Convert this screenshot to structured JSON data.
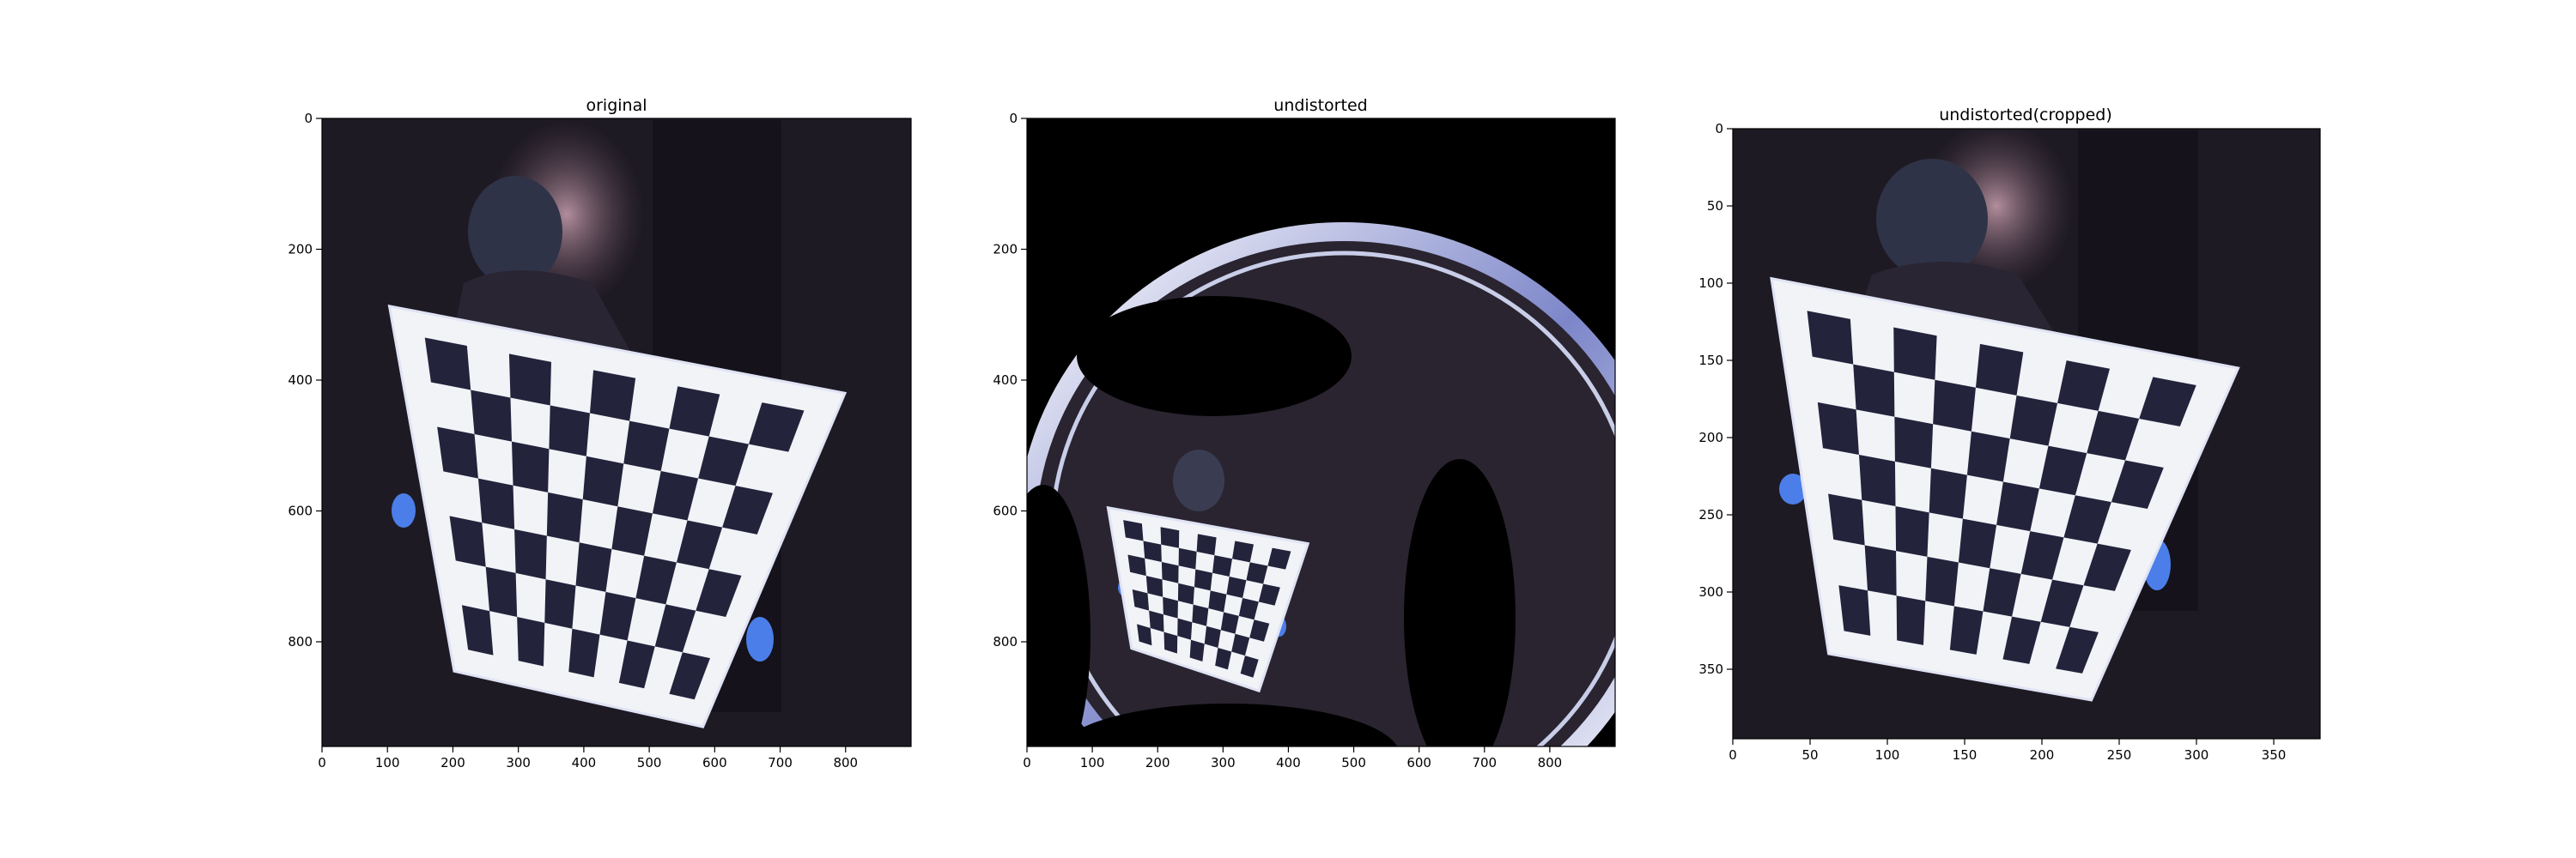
{
  "chart_data": [
    {
      "type": "image",
      "title": "original",
      "xlim": [
        0,
        900
      ],
      "ylim": [
        960,
        0
      ],
      "xticks": [
        0,
        100,
        200,
        300,
        400,
        500,
        600,
        700,
        800
      ],
      "yticks": [
        0,
        200,
        400,
        600,
        800
      ],
      "board_corners": [
        [
          103,
          287
        ],
        [
          799,
          420
        ],
        [
          582,
          930
        ],
        [
          202,
          845
        ]
      ],
      "grid": false
    },
    {
      "type": "image",
      "title": "undistorted",
      "xlim": [
        0,
        900
      ],
      "ylim": [
        960,
        0
      ],
      "xticks": [
        0,
        100,
        200,
        300,
        400,
        500,
        600,
        700,
        800
      ],
      "yticks": [
        0,
        200,
        400,
        600,
        800
      ],
      "board_corners": [
        [
          124,
          595
        ],
        [
          430,
          650
        ],
        [
          355,
          875
        ],
        [
          160,
          810
        ]
      ],
      "grid": false
    },
    {
      "type": "image",
      "title": "undistorted(cropped)",
      "xlim": [
        0,
        380
      ],
      "ylim": [
        395,
        0
      ],
      "xticks": [
        0,
        50,
        100,
        150,
        200,
        250,
        300,
        350
      ],
      "yticks": [
        0,
        50,
        100,
        150,
        200,
        250,
        300,
        350
      ],
      "board_corners": [
        [
          25,
          97
        ],
        [
          327,
          155
        ],
        [
          232,
          370
        ],
        [
          62,
          340
        ]
      ],
      "grid": false
    }
  ],
  "colors": {
    "scene_background": "#1e1a24",
    "board": "#f2f3f7",
    "square": "#23233c",
    "wall_pink": "#b08a9b",
    "blue_glove": "#4b7ee8"
  }
}
